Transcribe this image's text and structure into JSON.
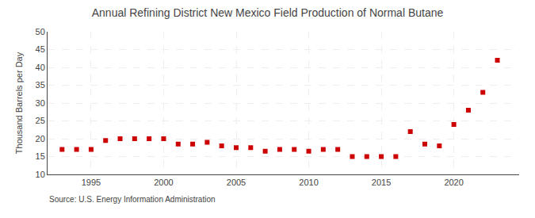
{
  "chart_data": {
    "type": "scatter",
    "title": "Annual Refining District New Mexico Field Production of Normal Butane",
    "y_label": "Thousand Barrels per Day",
    "annotations": [
      "Source: U.S. Energy Information Administration"
    ],
    "x": [
      1993,
      1994,
      1995,
      1996,
      1997,
      1998,
      1999,
      2000,
      2001,
      2002,
      2003,
      2004,
      2005,
      2006,
      2007,
      2008,
      2009,
      2010,
      2011,
      2012,
      2013,
      2014,
      2015,
      2016,
      2017,
      2018,
      2019,
      2020,
      2021,
      2022,
      2023
    ],
    "values": [
      17.0,
      17.0,
      17.0,
      19.5,
      20.0,
      20.0,
      20.0,
      20.0,
      18.5,
      18.5,
      19.0,
      18.0,
      17.5,
      17.5,
      16.5,
      17.0,
      17.0,
      16.5,
      17.0,
      17.0,
      15.0,
      15.0,
      15.0,
      15.0,
      22.0,
      18.5,
      18.0,
      24.0,
      28.0,
      33.0,
      42.0
    ],
    "color": "#cc0000",
    "marker": "square",
    "xlim": [
      1992,
      2024.5
    ],
    "xticks": [
      1995,
      2000,
      2005,
      2010,
      2015,
      2020
    ],
    "ylim": [
      10,
      50
    ],
    "yticks": [
      10,
      15,
      20,
      25,
      30,
      35,
      40,
      45,
      50
    ],
    "grid": true
  }
}
